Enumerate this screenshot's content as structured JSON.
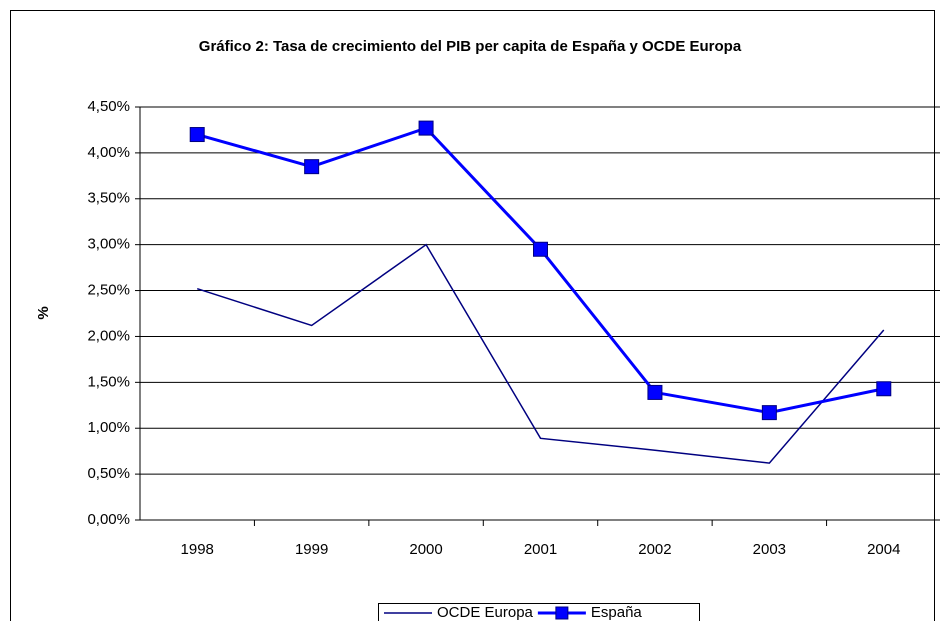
{
  "chart_data": {
    "type": "line",
    "title": "Gráfico 2: Tasa de crecimiento del PIB per capita de España y OCDE Europa",
    "y_label": "%",
    "categories": [
      "1998",
      "1999",
      "2000",
      "2001",
      "2002",
      "2003",
      "2004"
    ],
    "series": [
      {
        "name": "OCDE Europa",
        "color": "#000080",
        "marker": false,
        "values": [
          2.52,
          2.12,
          3.0,
          0.89,
          0.76,
          0.62,
          2.07
        ]
      },
      {
        "name": "España",
        "color": "#0000ff",
        "marker": true,
        "values": [
          4.2,
          3.85,
          4.27,
          2.95,
          1.39,
          1.17,
          1.43
        ]
      }
    ],
    "ylim": [
      0,
      4.5
    ],
    "yticks": [
      {
        "value": 0,
        "label": "0,00%"
      },
      {
        "value": 0.5,
        "label": "0,50%"
      },
      {
        "value": 1,
        "label": "1,00%"
      },
      {
        "value": 1.5,
        "label": "1,50%"
      },
      {
        "value": 2,
        "label": "2,00%"
      },
      {
        "value": 2.5,
        "label": "2,50%"
      },
      {
        "value": 3,
        "label": "3,00%"
      },
      {
        "value": 3.5,
        "label": "3,50%"
      },
      {
        "value": 4,
        "label": "4,00%"
      },
      {
        "value": 4.5,
        "label": "4,50%"
      }
    ],
    "grid": true
  }
}
